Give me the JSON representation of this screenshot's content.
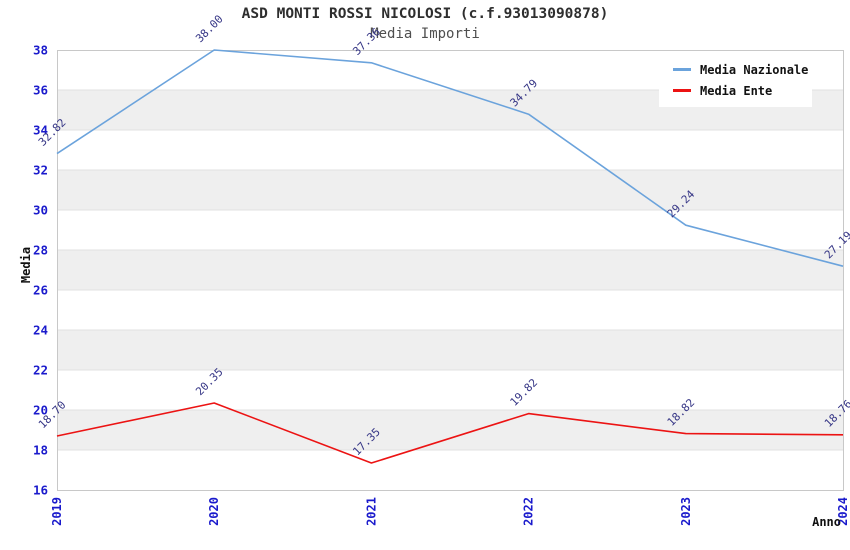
{
  "header": {
    "title": "ASD MONTI ROSSI NICOLOSI (c.f.93013090878)",
    "subtitle": "Media Importi"
  },
  "chart_data": {
    "type": "line",
    "title": "ASD MONTI ROSSI NICOLOSI (c.f.93013090878)",
    "subtitle": "Media Importi",
    "xlabel": "Anno",
    "ylabel": "Media",
    "categories": [
      "2019",
      "2020",
      "2021",
      "2022",
      "2023",
      "2024"
    ],
    "yticks": [
      38,
      36,
      34,
      32,
      30,
      28,
      26,
      24,
      22,
      20,
      18,
      16
    ],
    "ylim": [
      16,
      38
    ],
    "grid": "horizontal-bands",
    "legend_position": "top-right",
    "series": [
      {
        "name": "Media Nazionale",
        "color": "#6ba3dc",
        "values": [
          32.82,
          38.0,
          37.36,
          34.79,
          29.24,
          27.19
        ],
        "labels": [
          "32.82",
          "38.00",
          "37.36",
          "34.79",
          "29.24",
          "27.19"
        ]
      },
      {
        "name": "Media Ente",
        "color": "#ec1313",
        "values": [
          18.7,
          20.35,
          17.35,
          19.82,
          18.82,
          18.76
        ],
        "labels": [
          "18.70",
          "20.35",
          "17.35",
          "19.82",
          "18.82",
          "18.76"
        ]
      }
    ],
    "colors": {
      "band": "#efefef",
      "gridline": "#e0e0e0",
      "plot_border": "#c8c8c8",
      "tick_label": "#1a1acc",
      "data_label": "#363686"
    }
  }
}
